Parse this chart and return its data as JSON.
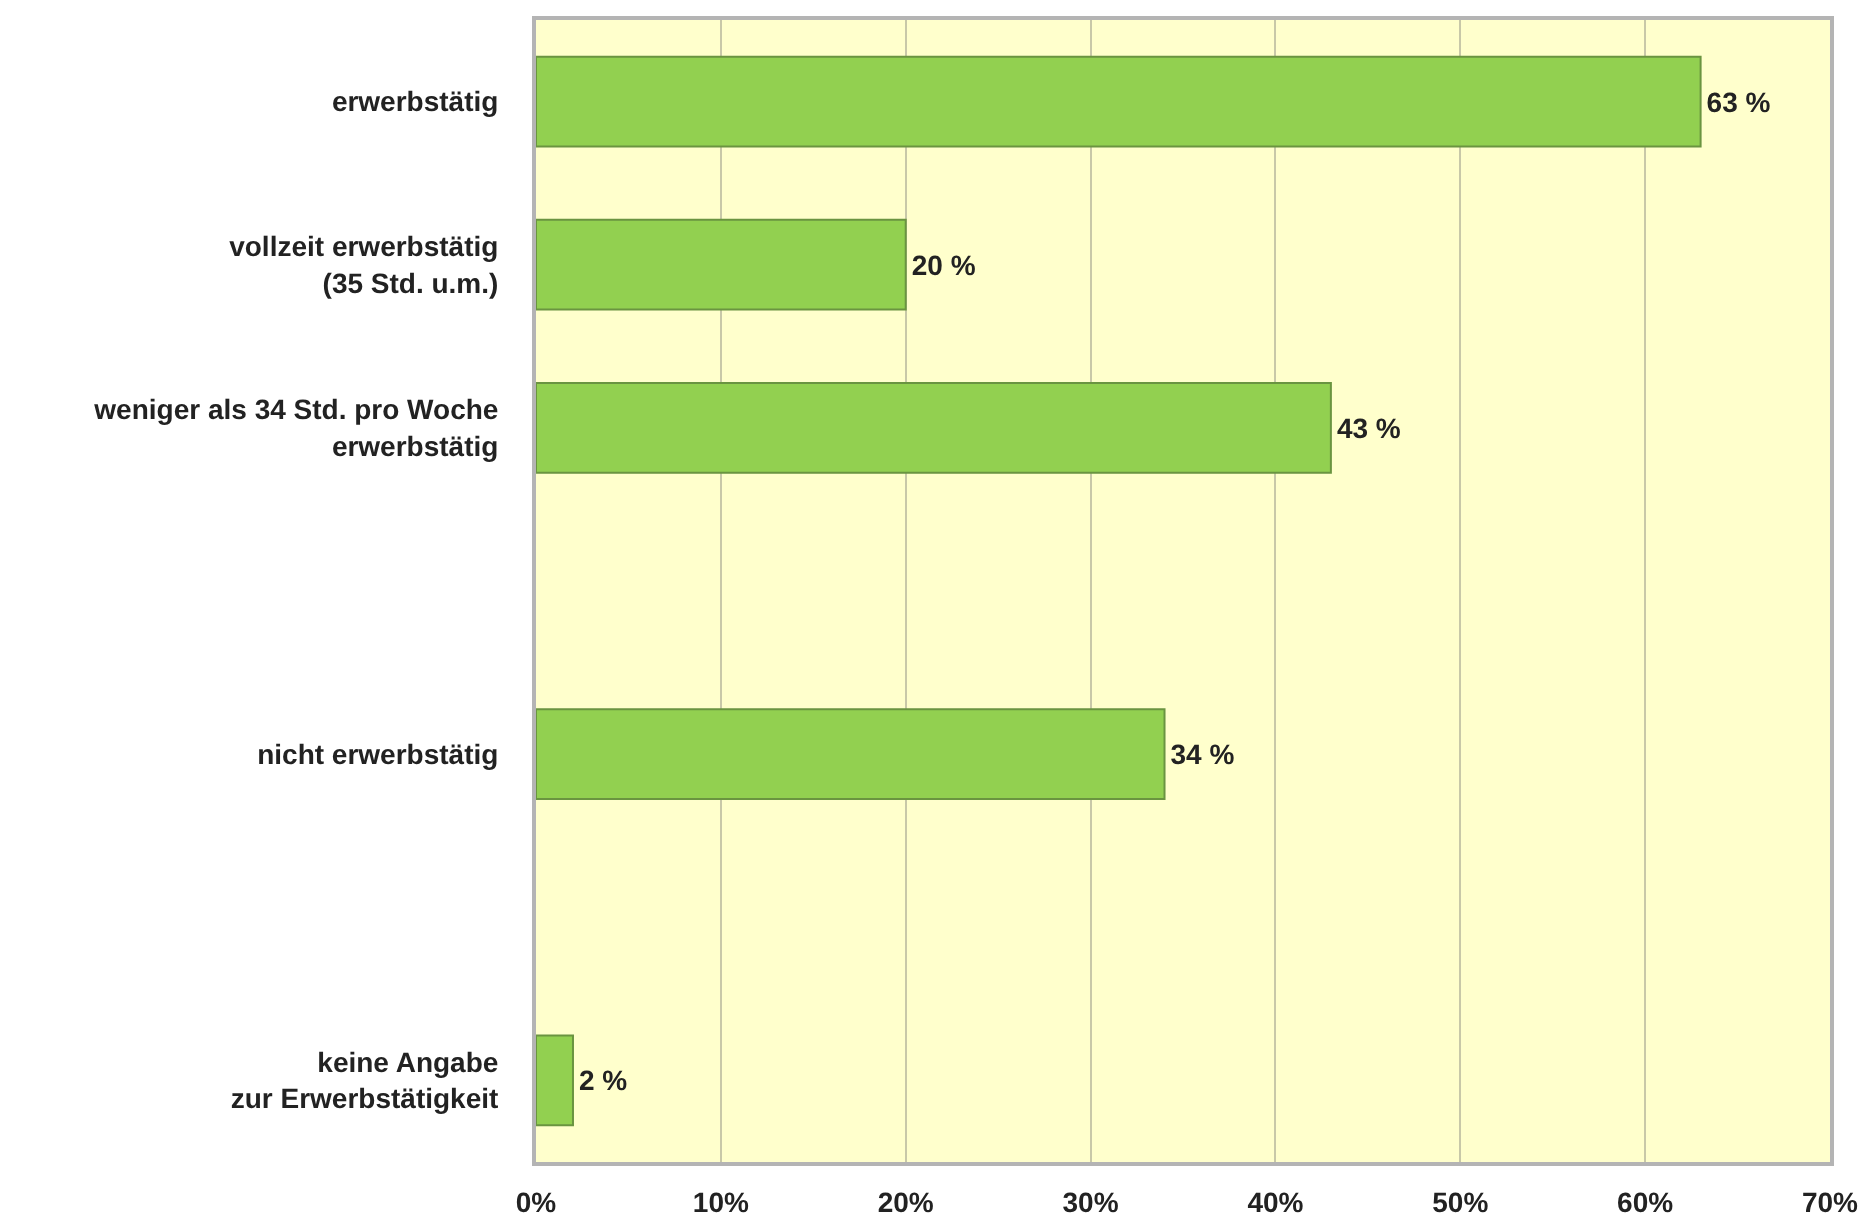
{
  "chart_data": {
    "type": "bar",
    "orientation": "horizontal",
    "categories": [
      "erwerbstätig",
      "vollzeit erwerbstätig\n(35 Std. u.m.)",
      "weniger als 34 Std. pro Woche\nerwerbstätig",
      null,
      "nicht erwerbstätig",
      null,
      "keine Angabe\nzur Erwerbstätigkeit"
    ],
    "values": [
      63,
      20,
      43,
      null,
      34,
      null,
      2
    ],
    "value_labels": [
      "63 %",
      "20 %",
      "43 %",
      null,
      "34 %",
      null,
      "2 %"
    ],
    "color": "#92d050",
    "xlim": [
      0,
      70
    ],
    "xticks": [
      {
        "value": 0,
        "label": "0%"
      },
      {
        "value": 10,
        "label": "10%"
      },
      {
        "value": 20,
        "label": "20%"
      },
      {
        "value": 30,
        "label": "30%"
      },
      {
        "value": 40,
        "label": "40%"
      },
      {
        "value": 50,
        "label": "50%"
      },
      {
        "value": 60,
        "label": "60%"
      },
      {
        "value": 70,
        "label": "70%"
      }
    ],
    "grid": "x"
  }
}
